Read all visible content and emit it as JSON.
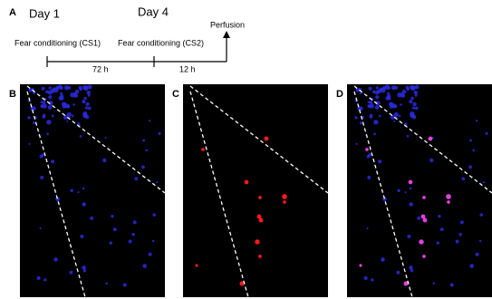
{
  "panel_a": {
    "label": "A",
    "day1": "Day 1",
    "day4": "Day 4",
    "end": "Perfusion",
    "event1": "Fear conditioning (CS1)",
    "event2": "Fear conditioning (CS2)",
    "interval1": "72 h",
    "interval2": "12 h"
  },
  "panels": [
    {
      "label": "B"
    },
    {
      "label": "C"
    },
    {
      "label": "D"
    }
  ]
}
